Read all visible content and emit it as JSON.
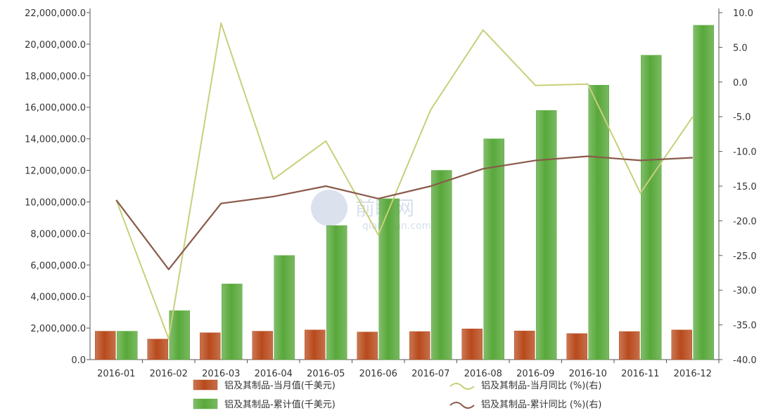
{
  "chart_data": {
    "type": "bar",
    "categories": [
      "2016-01",
      "2016-02",
      "2016-03",
      "2016-04",
      "2016-05",
      "2016-06",
      "2016-07",
      "2016-08",
      "2016-09",
      "2016-10",
      "2016-11",
      "2016-12"
    ],
    "y_left": {
      "ylim": [
        0,
        22000000
      ],
      "ticks": [
        "0.0",
        "2,000,000.0",
        "4,000,000.0",
        "6,000,000.0",
        "8,000,000.0",
        "10,000,000.0",
        "12,000,000.0",
        "14,000,000.0",
        "16,000,000.0",
        "18,000,000.0",
        "20,000,000.0",
        "22,000,000.0"
      ]
    },
    "y_right": {
      "ylim": [
        -40,
        10
      ],
      "ticks": [
        "-40.0",
        "-35.0",
        "-30.0",
        "-25.0",
        "-20.0",
        "-15.0",
        "-10.0",
        "-5.0",
        "0.0",
        "5.0",
        "10.0"
      ]
    },
    "bar_series": [
      {
        "name": "铝及其制品-当月值(千美元)",
        "color": "#b84a1c",
        "values": [
          1800000,
          1300000,
          1700000,
          1800000,
          1880000,
          1750000,
          1780000,
          1950000,
          1820000,
          1650000,
          1780000,
          1880000
        ]
      },
      {
        "name": "铝及其制品-累计值(千美元)",
        "color": "#58a83a",
        "values": [
          1800000,
          3100000,
          4800000,
          6600000,
          8500000,
          10200000,
          12000000,
          14000000,
          15800000,
          17400000,
          19300000,
          21200000
        ]
      }
    ],
    "line_series": [
      {
        "name": "铝及其制品-当月同比 (%)(右)",
        "color": "#c9cf7a",
        "values": [
          -17,
          -37,
          8.5,
          -14,
          -8.5,
          -22,
          -4,
          7.5,
          -0.5,
          -0.3,
          -16,
          -5
        ]
      },
      {
        "name": "铝及其制品-累计同比 (%)(右)",
        "color": "#8a5a4a",
        "values": [
          -17,
          -27,
          -17.5,
          -16.5,
          -15,
          -16.8,
          -15,
          -12.5,
          -11.3,
          -10.7,
          -11.3,
          -10.9
        ]
      }
    ],
    "legend_position": "bottom",
    "grid": false
  },
  "watermark": {
    "text": "前瞻网",
    "subtext": "qianzhan.com"
  }
}
